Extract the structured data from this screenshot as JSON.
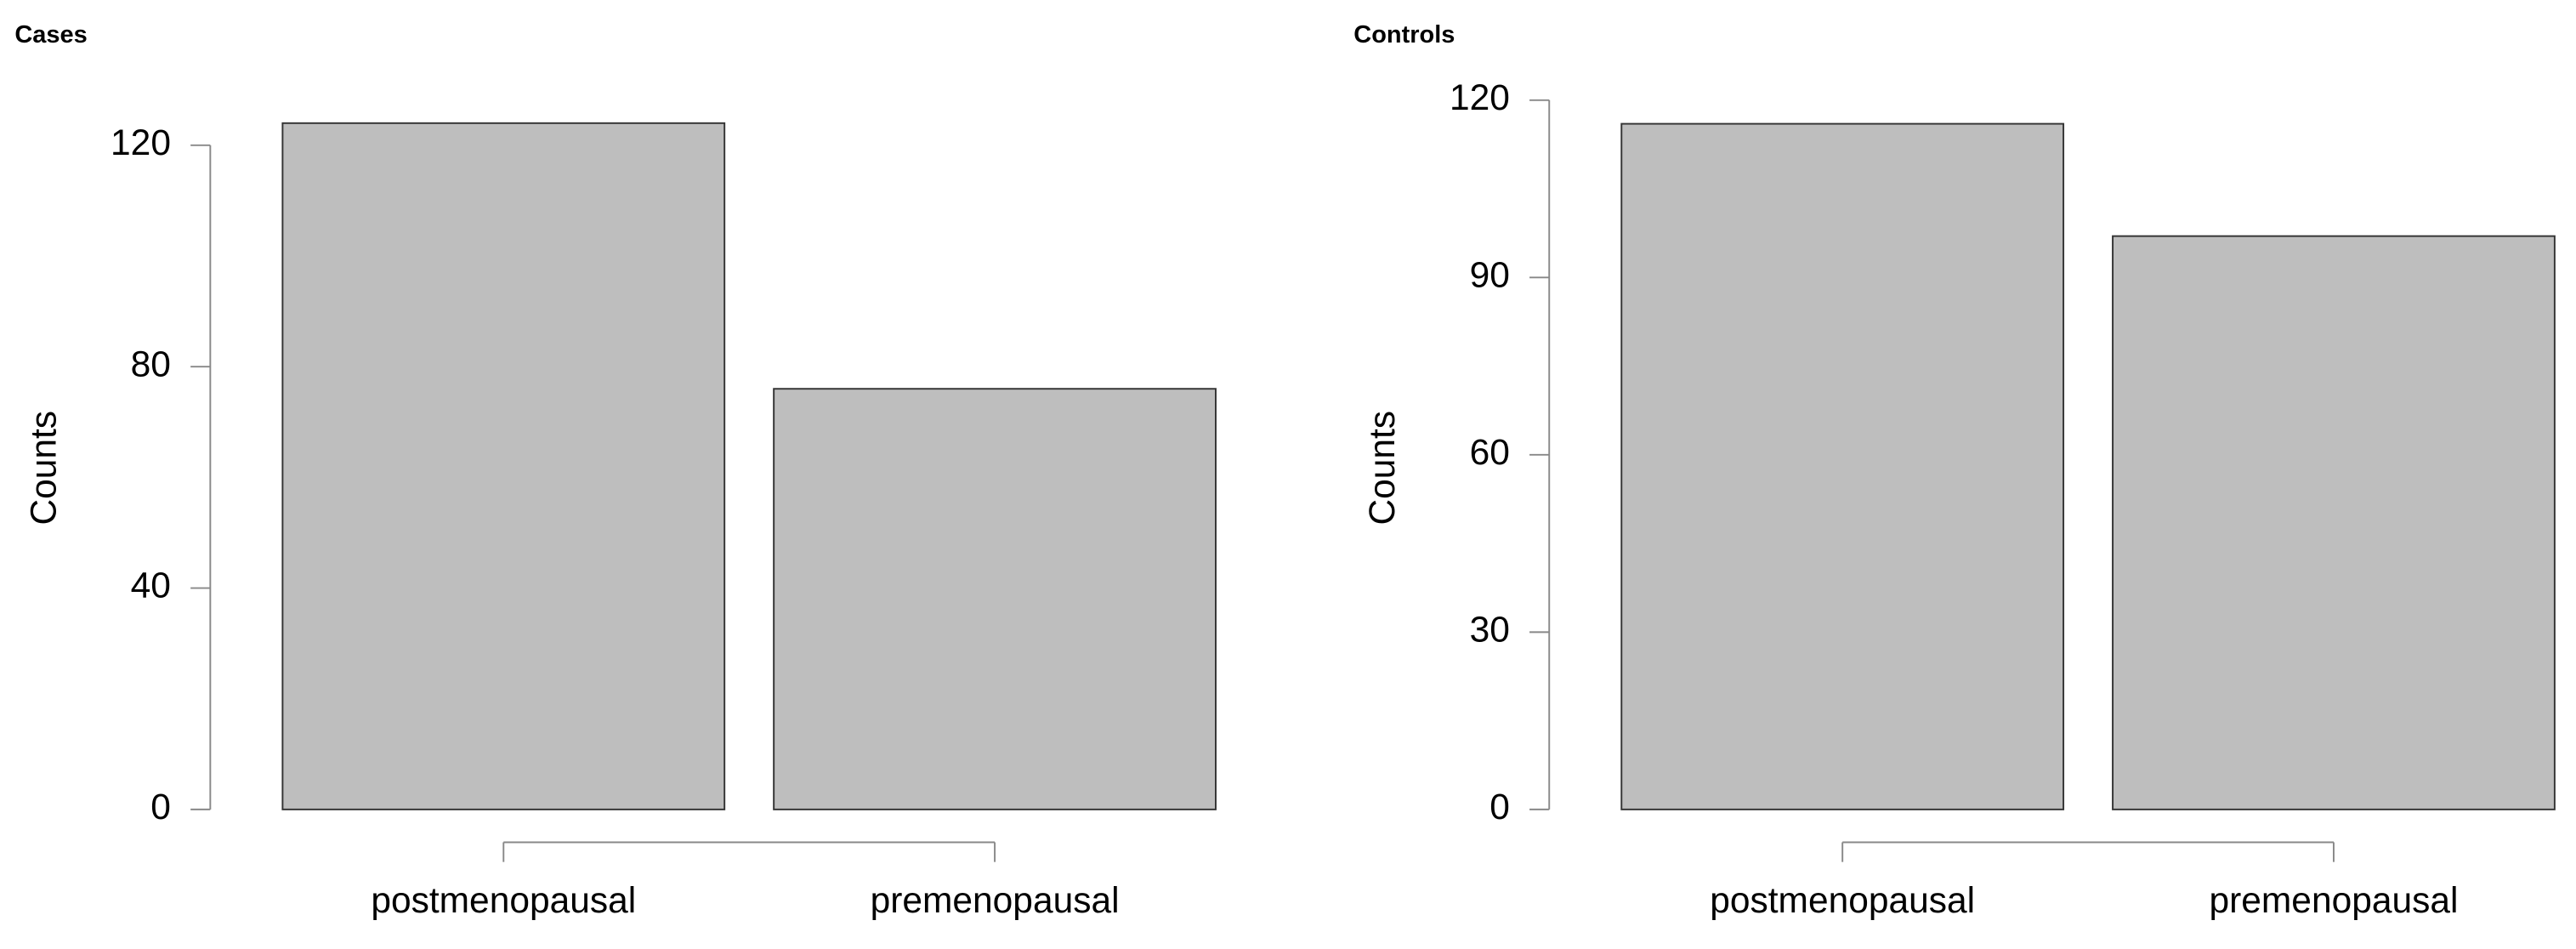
{
  "chart_data": [
    {
      "type": "bar",
      "title": "Cases",
      "ylabel": "Counts",
      "categories": [
        "postmenopausal",
        "premenopausal"
      ],
      "values": [
        124,
        76
      ],
      "color": "#bebebe",
      "ylim": [
        0,
        124
      ],
      "yticks": [
        0,
        40,
        80,
        120
      ]
    },
    {
      "type": "bar",
      "title": "Controls",
      "ylabel": "Counts",
      "categories": [
        "postmenopausal",
        "premenopausal"
      ],
      "values": [
        116,
        97
      ],
      "color": "#bebebe",
      "ylim": [
        0,
        120
      ],
      "yticks": [
        0,
        30,
        60,
        90,
        120
      ]
    }
  ]
}
